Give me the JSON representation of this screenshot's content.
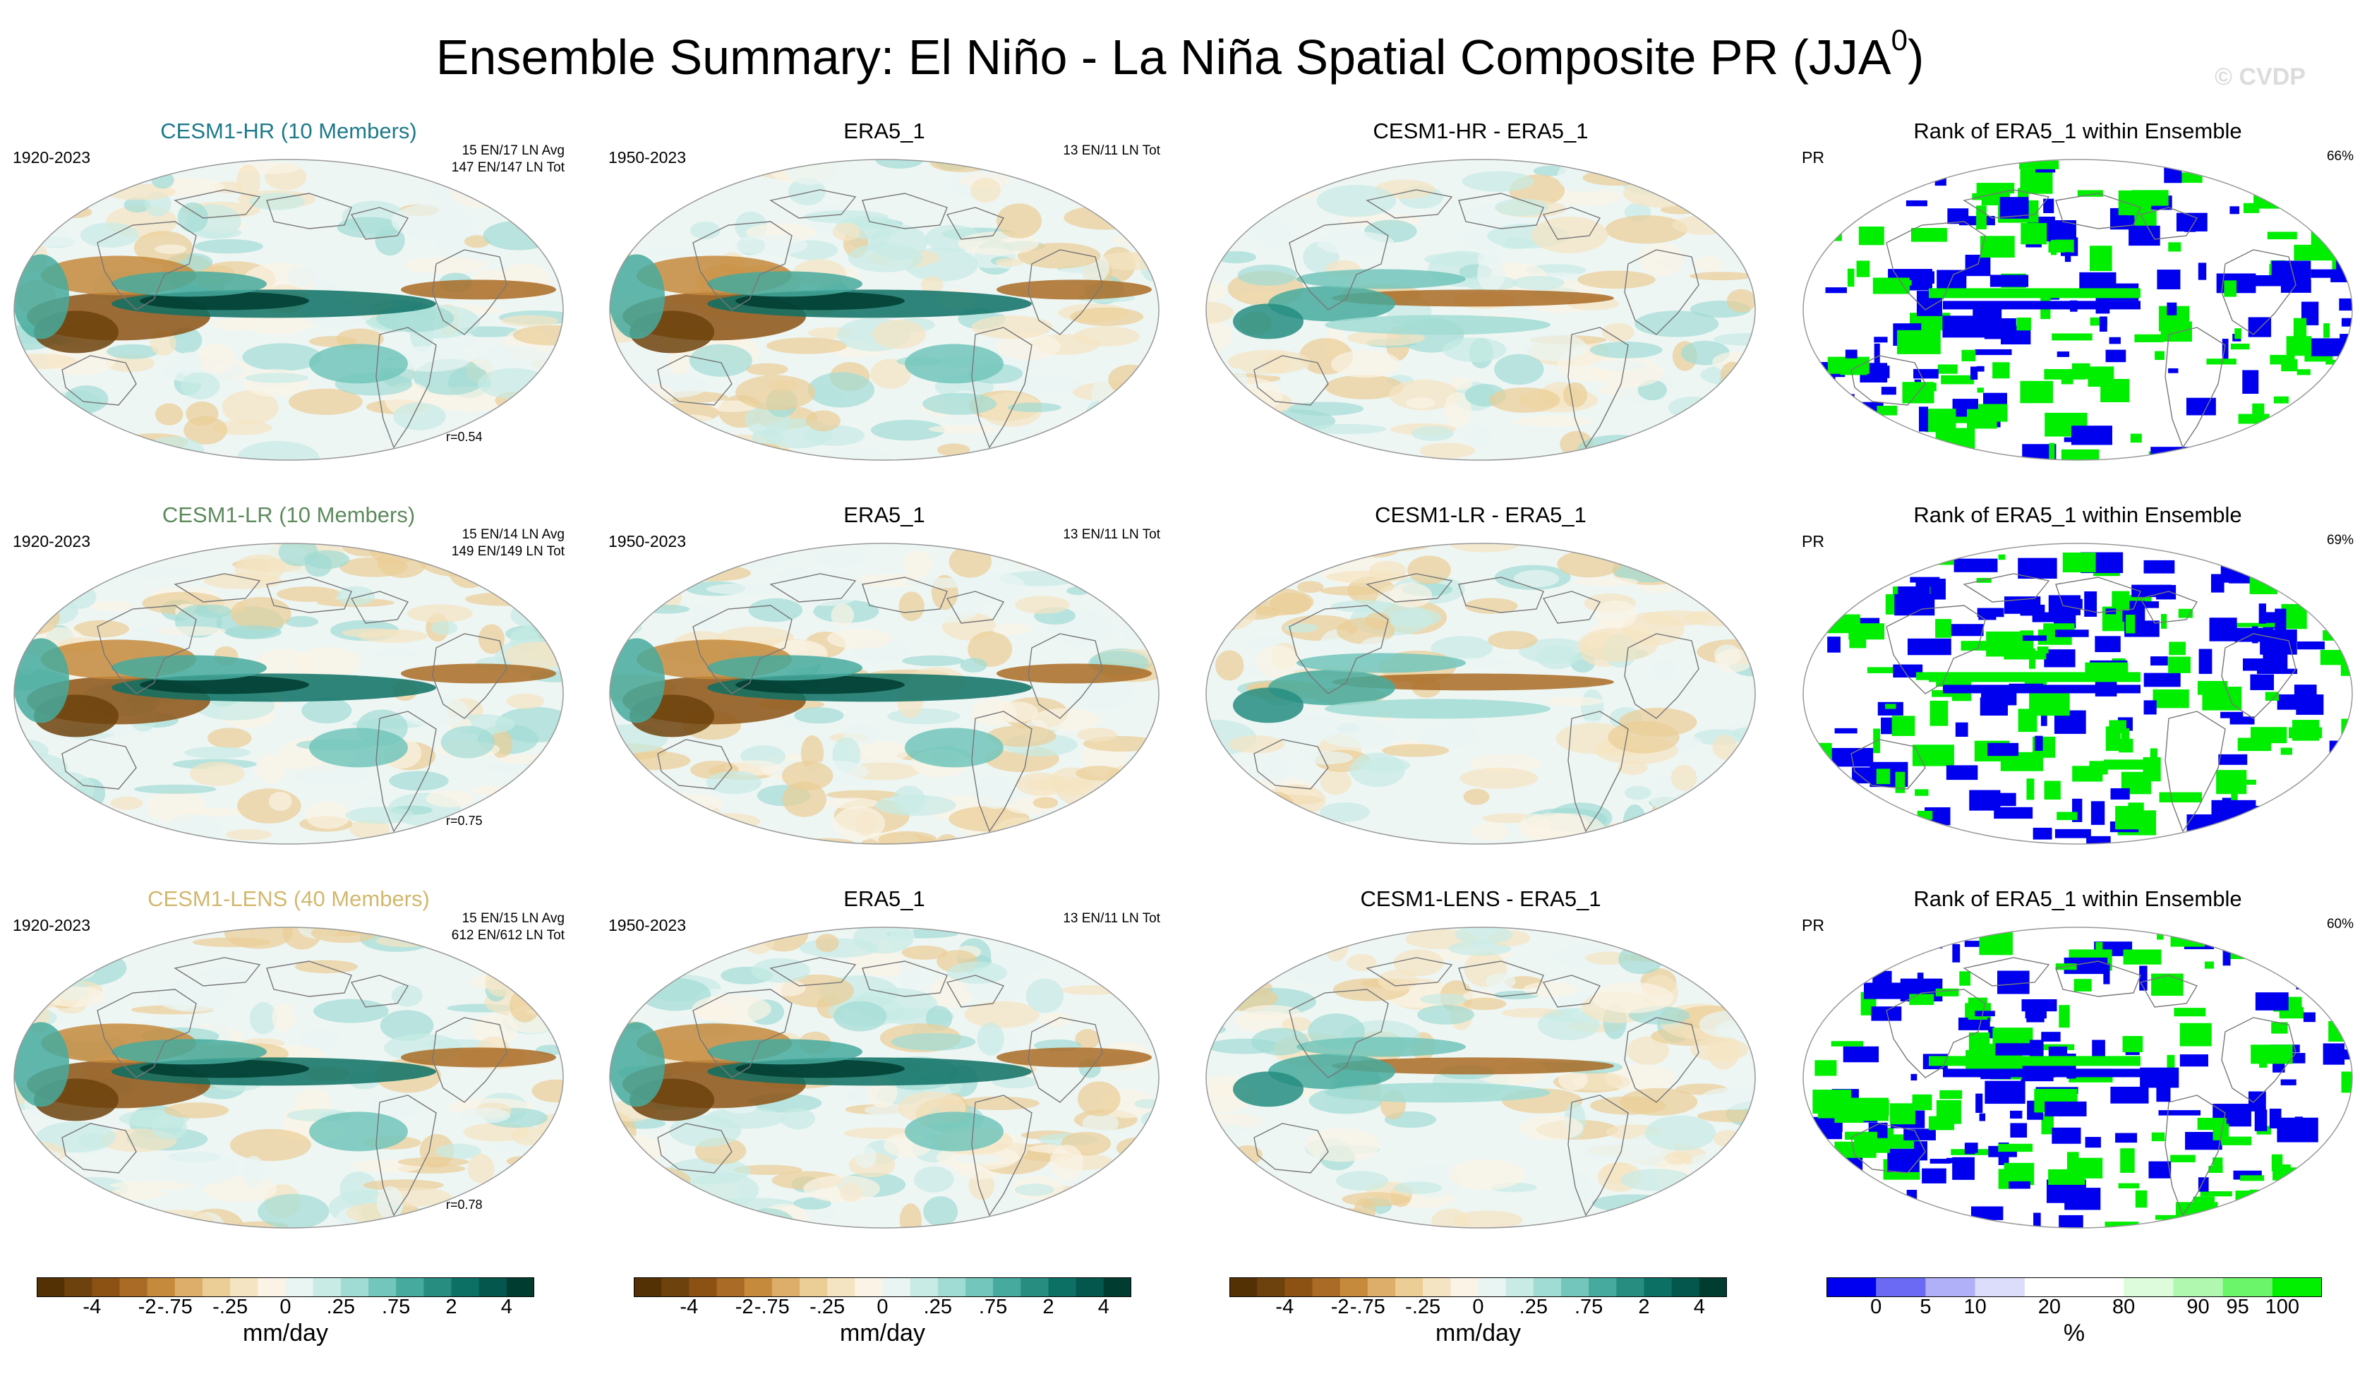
{
  "title": "Ensemble Summary: El Niño - La Niña Spatial Composite PR (JJA",
  "title_superscript": "0",
  "title_close": ")",
  "watermark": "© CVDP",
  "colors": {
    "brown_dark": "#5a3a0e",
    "teal_dark": "#08413a",
    "rank_blue": "#0000ee",
    "rank_green": "#00ee00",
    "coast": "#777777"
  },
  "chart_data": {
    "type": "heatmap",
    "units": "mm/day",
    "rows": [
      {
        "ensemble": {
          "title": "CESM1-HR (10 Members)",
          "title_color": "#1d7a8a",
          "period": "1920-2023",
          "info_1": "15 EN/17 LN Avg",
          "info_2": "147 EN/147 LN Tot",
          "pattern_corr": "r=0.54"
        },
        "obs": {
          "title": "ERA5_1",
          "period": "1950-2023",
          "info_1": "13 EN/11 LN Tot"
        },
        "diff": {
          "title": "CESM1-HR - ERA5_1"
        },
        "rank": {
          "title": "Rank of ERA5_1 within Ensemble",
          "variable": "PR",
          "percent": "66%"
        }
      },
      {
        "ensemble": {
          "title": "CESM1-LR (10 Members)",
          "title_color": "#5c8a5c",
          "period": "1920-2023",
          "info_1": "15 EN/14 LN Avg",
          "info_2": "149 EN/149 LN Tot",
          "pattern_corr": "r=0.75"
        },
        "obs": {
          "title": "ERA5_1",
          "period": "1950-2023",
          "info_1": "13 EN/11 LN Tot"
        },
        "diff": {
          "title": "CESM1-LR - ERA5_1"
        },
        "rank": {
          "title": "Rank of ERA5_1 within Ensemble",
          "variable": "PR",
          "percent": "69%"
        }
      },
      {
        "ensemble": {
          "title": "CESM1-LENS (40 Members)",
          "title_color": "#d2b86e",
          "period": "1920-2023",
          "info_1": "15 EN/15 LN Avg",
          "info_2": "612 EN/612 LN Tot",
          "pattern_corr": "r=0.78"
        },
        "obs": {
          "title": "ERA5_1",
          "period": "1950-2023",
          "info_1": "13 EN/11 LN Tot"
        },
        "diff": {
          "title": "CESM1-LENS - ERA5_1"
        },
        "rank": {
          "title": "Rank of ERA5_1 within Ensemble",
          "variable": "PR",
          "percent": "60%"
        }
      }
    ],
    "pr_colorbar": {
      "label": "mm/day",
      "colors": [
        "#543005",
        "#6d420c",
        "#8c5214",
        "#a96b25",
        "#c58a3c",
        "#dcae6a",
        "#ebcd96",
        "#f5e4c2",
        "#fbf3e6",
        "#e9f5f3",
        "#c8ebe6",
        "#a1dcd4",
        "#72c6bb",
        "#47aa9e",
        "#268d80",
        "#0d7064",
        "#04574c",
        "#003c30"
      ],
      "tick_labels": [
        "-4",
        "-2",
        "-.75",
        "-.25",
        "0",
        ".25",
        ".75",
        "2",
        "4"
      ]
    },
    "rank_colorbar": {
      "label": "%",
      "colors": [
        "#0000f0",
        "#6a6af5",
        "#b0b0f8",
        "#dcdcfb",
        "#ffffff",
        "#ffffff",
        "#dcfcdc",
        "#b0f8b0",
        "#6af56a",
        "#00f000"
      ],
      "tick_labels": [
        "0",
        "5",
        "10",
        "20",
        "80",
        "90",
        "95",
        "100"
      ]
    }
  }
}
